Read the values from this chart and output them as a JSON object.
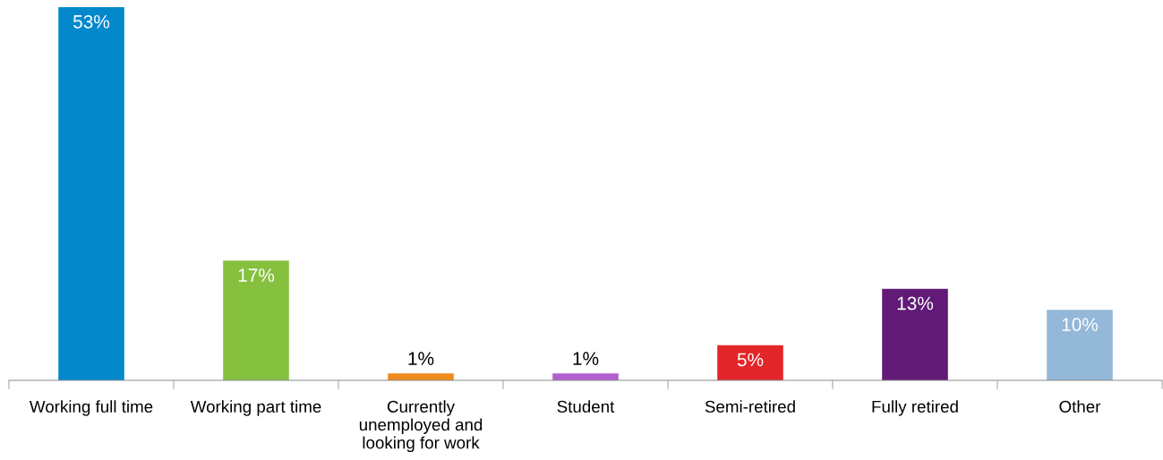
{
  "chart_data": {
    "type": "bar",
    "categories": [
      "Working full time",
      "Working part time",
      "Currently\nunemployed and\nlooking for work",
      "Student",
      "Semi-retired",
      "Fully retired",
      "Other"
    ],
    "values": [
      53,
      17,
      1,
      1,
      5,
      13,
      10
    ],
    "colors": [
      "#0288cb",
      "#86c03f",
      "#ef8a1d",
      "#b160cf",
      "#e3262a",
      "#611b76",
      "#93b8d8"
    ],
    "value_labels": [
      "53%",
      "17%",
      "1%",
      "1%",
      "5%",
      "13%",
      "10%"
    ],
    "grid": false,
    "legend": false
  }
}
